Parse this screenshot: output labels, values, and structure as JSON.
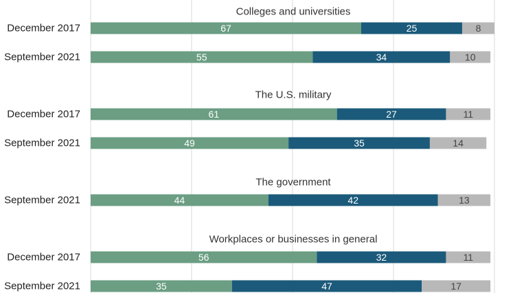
{
  "chart_data": {
    "type": "bar",
    "orientation": "horizontal",
    "stacked": true,
    "grid": true,
    "xlim": [
      0,
      100
    ],
    "colors": [
      "#6b9e83",
      "#1b5a7a",
      "#b8b8b8"
    ],
    "label_colors": [
      "#ffffff",
      "#ffffff",
      "#444444"
    ],
    "groups": [
      {
        "title": "Colleges and universities",
        "rows": [
          {
            "label": "December 2017",
            "values": [
              67,
              25,
              8
            ]
          },
          {
            "label": "September 2021",
            "values": [
              55,
              34,
              10
            ]
          }
        ]
      },
      {
        "title": "The U.S. military",
        "rows": [
          {
            "label": "December 2017",
            "values": [
              61,
              27,
              11
            ]
          },
          {
            "label": "September 2021",
            "values": [
              49,
              35,
              14
            ]
          }
        ]
      },
      {
        "title": "The government",
        "rows": [
          {
            "label": "September 2021",
            "values": [
              44,
              42,
              13
            ]
          }
        ]
      },
      {
        "title": "Workplaces or businesses in general",
        "rows": [
          {
            "label": "December 2017",
            "values": [
              56,
              32,
              11
            ]
          },
          {
            "label": "September 2021",
            "values": [
              35,
              47,
              17
            ]
          }
        ]
      }
    ]
  }
}
